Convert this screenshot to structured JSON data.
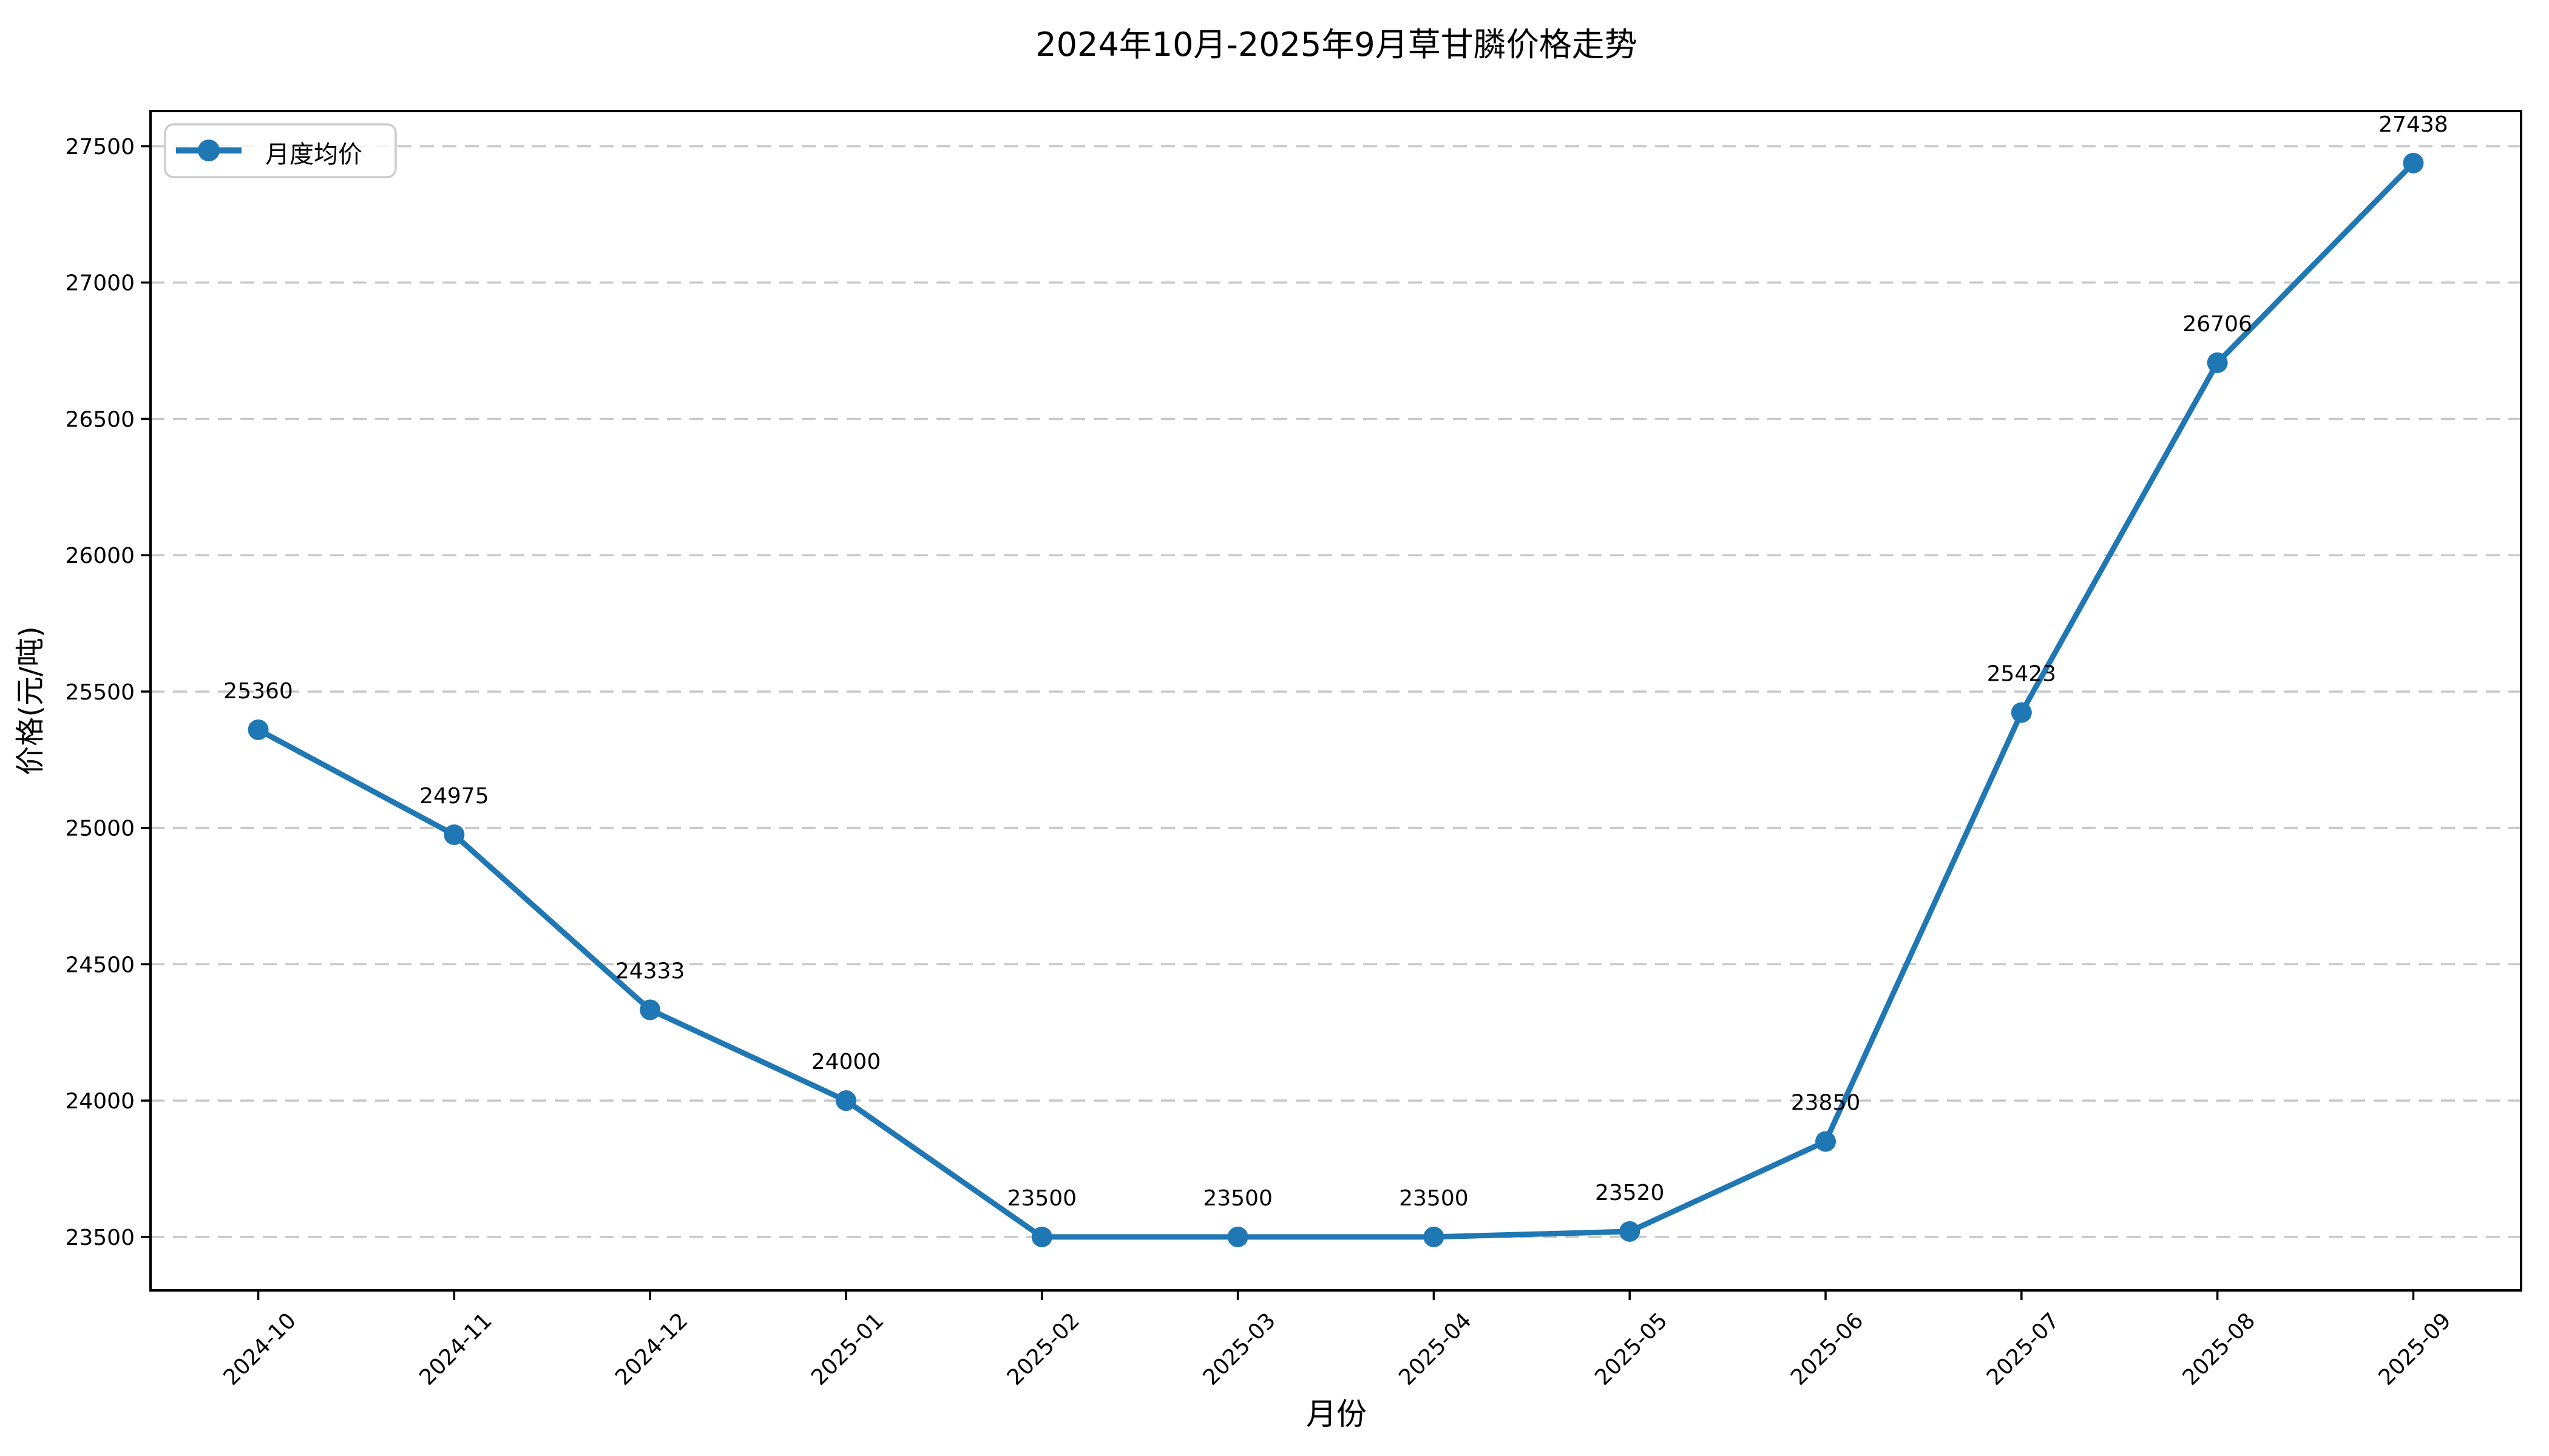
{
  "title": "2024年10月-2025年9月草甘膦价格走势",
  "chart_data": {
    "type": "line",
    "title": "2024年10月-2025年9月草甘膦价格走势",
    "xlabel": "月份",
    "ylabel": "价格(元/吨)",
    "categories": [
      "2024-10",
      "2024-11",
      "2024-12",
      "2025-01",
      "2025-02",
      "2025-03",
      "2025-04",
      "2025-05",
      "2025-06",
      "2025-07",
      "2025-08",
      "2025-09"
    ],
    "series": [
      {
        "name": "月度均价",
        "color": "#1f77b4",
        "marker": "circle",
        "values": [
          25360,
          24975,
          24333,
          24000,
          23500,
          23500,
          23500,
          23520,
          23850,
          25423,
          26706,
          27438
        ]
      }
    ],
    "point_labels": [
      "25360",
      "24975",
      "24333",
      "24000",
      "23500",
      "23500",
      "23500",
      "23520",
      "23850",
      "25423",
      "26706",
      "27438"
    ],
    "yticks": [
      23500,
      24000,
      24500,
      25000,
      25500,
      26000,
      26500,
      27000,
      27500
    ],
    "ylim": [
      23304,
      27629
    ],
    "xlim": [
      -0.55,
      11.55
    ],
    "grid": {
      "axis": "y",
      "style": "dashed",
      "color": "#c7c7c7"
    },
    "legend": {
      "position": "upper-left",
      "entries": [
        "月度均价"
      ]
    },
    "background": "#ffffff",
    "text_color": "#000000"
  }
}
